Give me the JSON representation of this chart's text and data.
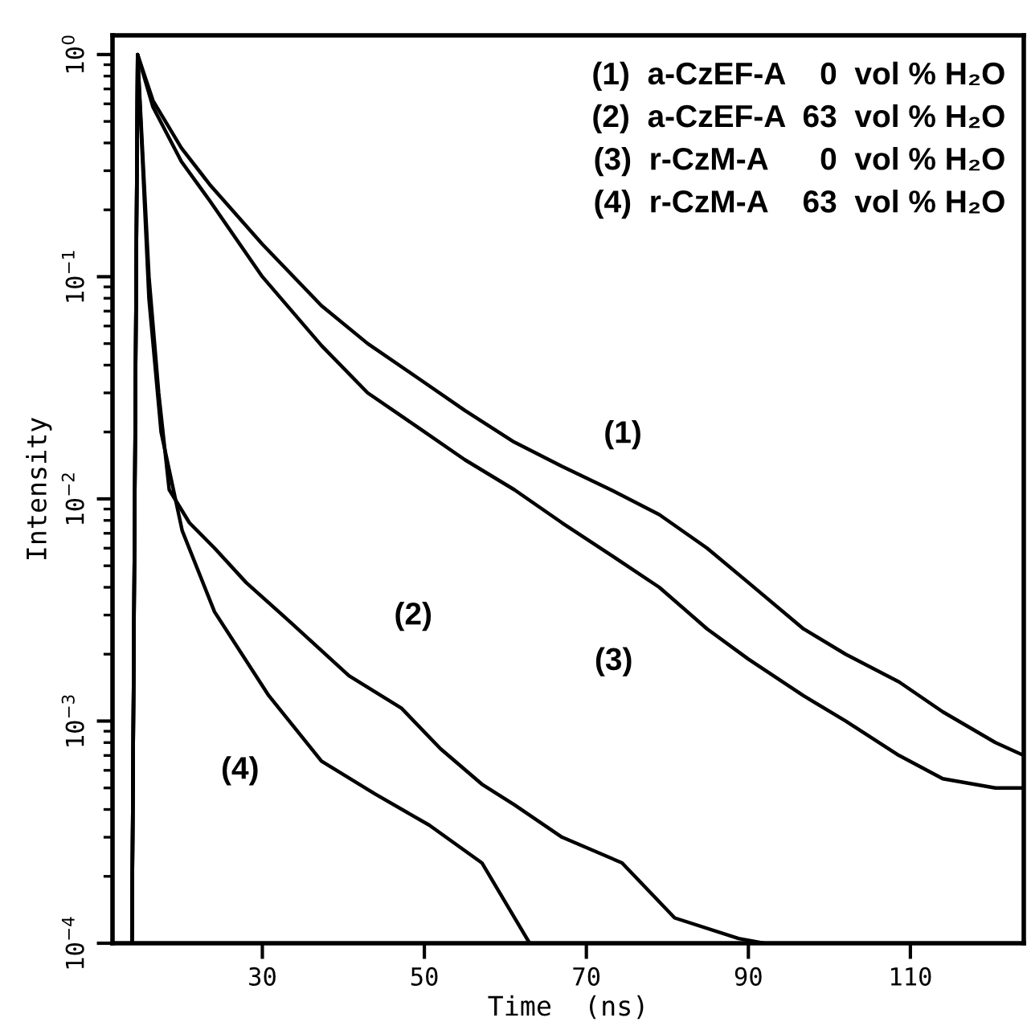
{
  "chart_data": {
    "type": "line",
    "xlabel": "Time  (ns)",
    "ylabel": "Intensity",
    "log": "y",
    "grid": false,
    "legend": false,
    "marker": "none",
    "line_style": "solid",
    "xlim": [
      11.5,
      124
    ],
    "xticks": [
      30,
      50,
      70,
      90,
      110
    ],
    "ylim": [
      0.0001,
      1.22
    ],
    "yticks": [
      {
        "value": 1,
        "label": "10$^{0}$"
      },
      {
        "value": 0.1,
        "label": "10$^{−1}$"
      },
      {
        "value": 0.01,
        "label": "10$^{−2}$"
      },
      {
        "value": 0.001,
        "label": "10$^{−3}$"
      },
      {
        "value": 0.0001,
        "label": "10$^{−4}$"
      }
    ],
    "series": [
      {
        "name": "(1)",
        "color": "#000000",
        "x": [
          13.9,
          14.6,
          16.5,
          20,
          23.5,
          30,
          37.3,
          43,
          49.2,
          55,
          61.1,
          67,
          73,
          79,
          84.9,
          90,
          96.8,
          102,
          108.6,
          114,
          120.5,
          124
        ],
        "values": [
          0.0001,
          1.0,
          0.62,
          0.38,
          0.26,
          0.14,
          0.074,
          0.05,
          0.035,
          0.025,
          0.018,
          0.014,
          0.011,
          0.0085,
          0.006,
          0.0042,
          0.0026,
          0.002,
          0.0015,
          0.0011,
          0.0008,
          0.0007
        ]
      },
      {
        "name": "(2)",
        "color": "#000000",
        "x": [
          13.9,
          14.6,
          16,
          17.2,
          18.5,
          21,
          24.1,
          28,
          33.4,
          40.7,
          47.2,
          52,
          57.1,
          61.1,
          67,
          74.4,
          80.9,
          88.8,
          92
        ],
        "values": [
          0.0001,
          1.0,
          0.1,
          0.03,
          0.011,
          0.0078,
          0.006,
          0.0042,
          0.0028,
          0.0016,
          0.00114,
          0.00075,
          0.00052,
          0.00042,
          0.0003,
          0.00023,
          0.00013,
          0.000105,
          0.0001
        ]
      },
      {
        "name": "(3)",
        "color": "#000000",
        "x": [
          13.9,
          14.6,
          16.5,
          20,
          23.5,
          30,
          37.3,
          43,
          49.2,
          55,
          61.1,
          67,
          73,
          79,
          84.9,
          90,
          96.8,
          102,
          108.6,
          114,
          120.5,
          124
        ],
        "values": [
          0.0001,
          1.0,
          0.58,
          0.33,
          0.22,
          0.1,
          0.049,
          0.03,
          0.021,
          0.015,
          0.011,
          0.0078,
          0.0056,
          0.004,
          0.0026,
          0.0019,
          0.0013,
          0.001,
          0.0007,
          0.00055,
          0.0005,
          0.0005
        ]
      },
      {
        "name": "(4)",
        "color": "#000000",
        "x": [
          13.9,
          14.6,
          16,
          17.5,
          20.1,
          24.1,
          30.8,
          37.3,
          43.9,
          50.6,
          57.1,
          63
        ],
        "values": [
          0.0001,
          1.0,
          0.08,
          0.02,
          0.0072,
          0.0031,
          0.0013,
          0.00066,
          0.00047,
          0.00034,
          0.00023,
          0.0001
        ]
      }
    ],
    "annotations": [
      "(1)  a-CzEF-A    0  vol % H₂O",
      "(2)  a-CzEF-A  63  vol % H₂O",
      "(3)  r-CzM-A      0  vol % H₂O",
      "(4)  r-CzM-A    63  vol % H₂O"
    ]
  }
}
